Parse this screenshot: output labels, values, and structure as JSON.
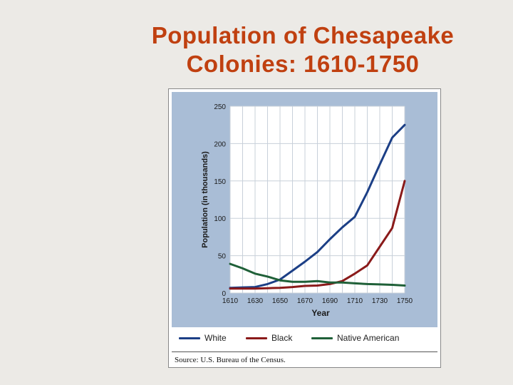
{
  "slide": {
    "title_line1": "Population of Chesapeake",
    "title_line2": "Colonies: 1610-1750"
  },
  "colors": {
    "title": "#c04010",
    "panel_bg": "#a9bdd6",
    "plot_bg": "#ffffff",
    "grid": "#c8d0da"
  },
  "source": "Source: U.S. Bureau of the Census.",
  "chart_data": {
    "type": "line",
    "xlabel": "Year",
    "ylabel": "Population (in thousands)",
    "xlim": [
      1610,
      1750
    ],
    "ylim": [
      0,
      250
    ],
    "x_ticks": [
      1610,
      1630,
      1650,
      1670,
      1690,
      1710,
      1730,
      1750
    ],
    "y_ticks": [
      0,
      50,
      100,
      150,
      200,
      250
    ],
    "grid": true,
    "legend_position": "bottom",
    "x": [
      1610,
      1620,
      1630,
      1640,
      1650,
      1660,
      1670,
      1680,
      1690,
      1700,
      1710,
      1720,
      1730,
      1740,
      1750
    ],
    "series": [
      {
        "name": "White",
        "color": "#1c3f86",
        "values": [
          7,
          7.5,
          8,
          12,
          18,
          30,
          42,
          55,
          72,
          88,
          102,
          135,
          172,
          208,
          225
        ]
      },
      {
        "name": "Black",
        "color": "#8a1a1a",
        "values": [
          6,
          6,
          6,
          6.5,
          7,
          8,
          9.5,
          10,
          12,
          16,
          26,
          37,
          62,
          87,
          150
        ]
      },
      {
        "name": "Native American",
        "color": "#1f6038",
        "values": [
          39,
          33,
          26,
          22,
          17,
          15,
          15,
          16,
          14,
          14,
          13,
          12,
          11.5,
          11,
          10
        ]
      }
    ]
  }
}
